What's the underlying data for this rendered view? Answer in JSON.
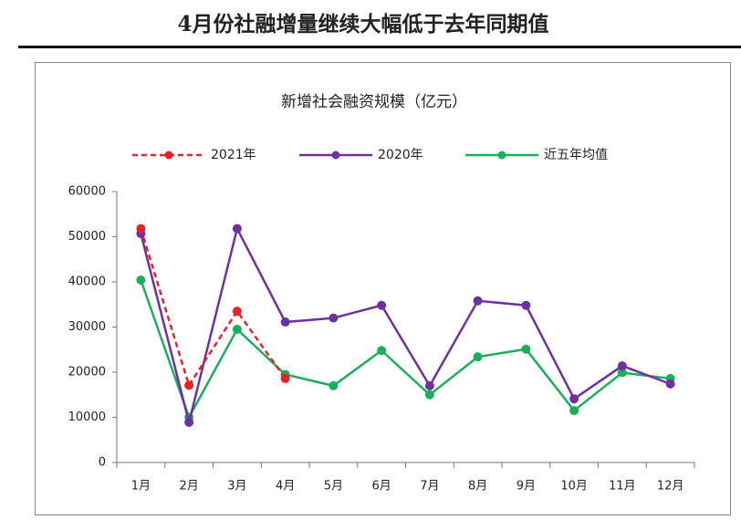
{
  "heading": "4月份社融增量继续大幅低于去年同期值",
  "chart_data": {
    "type": "line",
    "title": "新增社会融资规模（亿元）",
    "categories": [
      "1月",
      "2月",
      "3月",
      "4月",
      "5月",
      "6月",
      "7月",
      "8月",
      "9月",
      "10月",
      "11月",
      "12月"
    ],
    "series": [
      {
        "name": "2021年",
        "color": "#e8222a",
        "style": "dashed",
        "values": [
          51800,
          17100,
          33500,
          18600,
          null,
          null,
          null,
          null,
          null,
          null,
          null,
          null
        ]
      },
      {
        "name": "2020年",
        "color": "#7030a0",
        "style": "solid",
        "values": [
          50700,
          8900,
          51800,
          31100,
          32000,
          34800,
          17000,
          35800,
          34800,
          14100,
          21400,
          17400
        ]
      },
      {
        "name": "近五年均值",
        "color": "#1aaf5d",
        "style": "solid",
        "values": [
          40400,
          10000,
          29500,
          19500,
          17000,
          24800,
          15000,
          23400,
          25100,
          11500,
          19900,
          18600
        ]
      }
    ],
    "ylim": [
      0,
      60000
    ],
    "yticks": [
      0,
      10000,
      20000,
      30000,
      40000,
      50000,
      60000
    ],
    "grid": false
  }
}
